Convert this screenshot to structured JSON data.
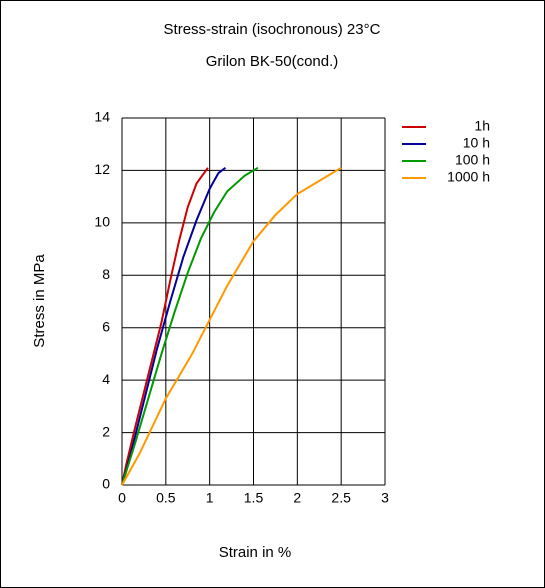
{
  "chart_data": {
    "type": "line",
    "title": "Stress-strain (isochronous) 23°C",
    "subtitle": "Grilon BK-50(cond.)",
    "x_label": "Strain in %",
    "y_label": "Stress in MPa",
    "xlim": [
      0,
      3
    ],
    "xticks": [
      0,
      0.5,
      1,
      1.5,
      2,
      2.5,
      3
    ],
    "ylim": [
      0,
      14
    ],
    "yticks": [
      0,
      2,
      4,
      6,
      8,
      10,
      12,
      14
    ],
    "grid": true,
    "legend": "right",
    "series": [
      {
        "name": "1h",
        "color": "#cc0000",
        "x": [
          0,
          0.05,
          0.15,
          0.3,
          0.45,
          0.55,
          0.65,
          0.75,
          0.85,
          0.98
        ],
        "values": [
          0,
          0.8,
          2.2,
          4.2,
          6.2,
          7.8,
          9.3,
          10.6,
          11.5,
          12.1
        ]
      },
      {
        "name": "10 h",
        "color": "#000099",
        "x": [
          0,
          0.1,
          0.25,
          0.4,
          0.55,
          0.7,
          0.85,
          1.0,
          1.1,
          1.18
        ],
        "values": [
          0,
          1.2,
          3.2,
          5.2,
          7.0,
          8.7,
          10.1,
          11.3,
          11.9,
          12.1
        ]
      },
      {
        "name": "100 h",
        "color": "#009900",
        "x": [
          0,
          0.15,
          0.3,
          0.45,
          0.6,
          0.75,
          0.9,
          1.05,
          1.2,
          1.4,
          1.55
        ],
        "values": [
          0,
          1.6,
          3.3,
          5.0,
          6.6,
          8.1,
          9.4,
          10.4,
          11.2,
          11.8,
          12.1
        ]
      },
      {
        "name": "1000 h",
        "color": "#ff9900",
        "x": [
          0,
          0.2,
          0.5,
          0.8,
          1.0,
          1.2,
          1.5,
          1.75,
          2.0,
          2.25,
          2.5
        ],
        "values": [
          0,
          1.2,
          3.3,
          5.0,
          6.3,
          7.6,
          9.3,
          10.3,
          11.1,
          11.6,
          12.1
        ]
      }
    ]
  }
}
